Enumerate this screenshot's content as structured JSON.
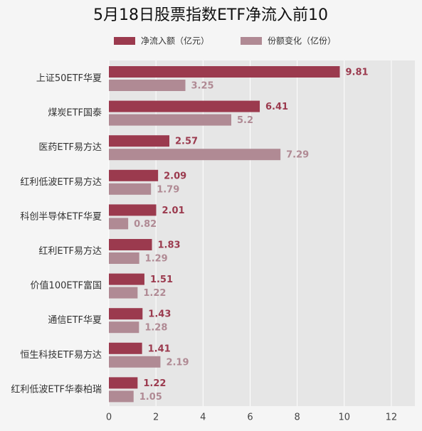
{
  "chart_data": {
    "type": "bar",
    "orientation": "horizontal",
    "title": "5月18日股票指数ETF净流入前10",
    "categories": [
      "上证50ETF华夏",
      "煤炭ETF国泰",
      "医药ETF易方达",
      "红利低波ETF易方达",
      "科创半导体ETF华夏",
      "红利ETF易方达",
      "价值100ETF富国",
      "通信ETF华夏",
      "恒生科技ETF易方达",
      "红利低波ETF华泰柏瑞"
    ],
    "series": [
      {
        "name": "净流入额（亿元）",
        "color": "#9b3a4e",
        "values": [
          9.81,
          6.41,
          2.57,
          2.09,
          2.01,
          1.83,
          1.51,
          1.43,
          1.41,
          1.22
        ]
      },
      {
        "name": "份额变化（亿份）",
        "color": "#b08a94",
        "values": [
          3.25,
          5.2,
          7.29,
          1.79,
          0.82,
          1.29,
          1.22,
          1.28,
          2.19,
          1.05
        ]
      }
    ],
    "xlim": [
      0,
      13
    ],
    "xticks": [
      0,
      2,
      4,
      6,
      8,
      10,
      12
    ],
    "grid": true
  }
}
